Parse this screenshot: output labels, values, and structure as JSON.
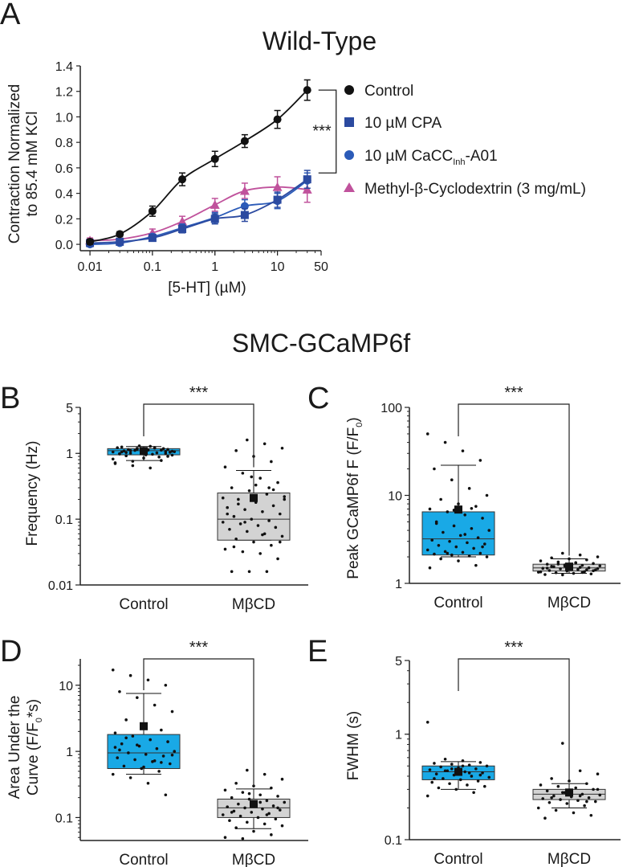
{
  "panel_letters": {
    "a": "A",
    "b": "B",
    "c": "C",
    "d": "D",
    "e": "E"
  },
  "section_title": "SMC-GCaMP6f",
  "significance": "***",
  "chart_data": [
    {
      "id": "A",
      "type": "line",
      "title": "Wild-Type",
      "xlabel": "[5-HT] (µM)",
      "ylabel": [
        "Contraction Normalized",
        "to 85.4 mM KCl"
      ],
      "xscale": "log",
      "xlim": [
        0.007,
        50
      ],
      "ylim": [
        -0.05,
        1.4
      ],
      "xticks": [
        0.01,
        0.1,
        1,
        10,
        50
      ],
      "xtick_labels": [
        "0.01",
        "0.1",
        "1",
        "10",
        "50"
      ],
      "yticks": [
        0.0,
        0.2,
        0.4,
        0.6,
        0.8,
        1.0,
        1.2,
        1.4
      ],
      "ytick_labels": [
        "0.0",
        "0.2",
        "0.4",
        "0.6",
        "0.8",
        "1.0",
        "1.2",
        "1.4"
      ],
      "significance_bracket": {
        "label": "***",
        "between": [
          "Control",
          "10 µM CPA"
        ],
        "at_x": 30
      },
      "series": [
        {
          "name": "Control",
          "marker": "circle",
          "color": "#111111",
          "x": [
            0.01,
            0.03,
            0.1,
            0.3,
            1,
            3,
            10,
            30
          ],
          "y": [
            0.02,
            0.08,
            0.26,
            0.51,
            0.67,
            0.81,
            0.98,
            1.21
          ],
          "err": [
            0.02,
            0.02,
            0.04,
            0.05,
            0.06,
            0.05,
            0.07,
            0.08
          ]
        },
        {
          "name": "10 µM CPA",
          "marker": "square",
          "color": "#2b4aa0",
          "x": [
            0.01,
            0.03,
            0.1,
            0.3,
            1,
            3,
            10,
            30
          ],
          "y": [
            0.01,
            0.02,
            0.05,
            0.12,
            0.2,
            0.23,
            0.35,
            0.51
          ],
          "err": [
            0.01,
            0.01,
            0.02,
            0.03,
            0.04,
            0.05,
            0.06,
            0.07
          ]
        },
        {
          "name": "10 µM CaCC",
          "name_sub": "Inh",
          "name_suffix": "-A01",
          "marker": "circle",
          "color": "#2b5bb8",
          "x": [
            0.01,
            0.03,
            0.1,
            0.3,
            1,
            3,
            10,
            30
          ],
          "y": [
            0.0,
            0.01,
            0.06,
            0.13,
            0.21,
            0.3,
            0.34,
            0.5
          ],
          "err": [
            0.01,
            0.01,
            0.02,
            0.03,
            0.04,
            0.05,
            0.06,
            0.06
          ]
        },
        {
          "name": "Methyl-β-Cyclodextrin (3 mg/mL)",
          "marker": "triangle",
          "color": "#c0529c",
          "x": [
            0.01,
            0.03,
            0.1,
            0.3,
            1,
            3,
            10,
            30
          ],
          "y": [
            0.03,
            0.04,
            0.09,
            0.18,
            0.31,
            0.42,
            0.45,
            0.43
          ],
          "err": [
            0.02,
            0.02,
            0.03,
            0.04,
            0.05,
            0.06,
            0.08,
            0.1
          ]
        }
      ]
    },
    {
      "id": "B",
      "type": "box",
      "ylabel": "Frequency (Hz)",
      "yscale": "log",
      "ylim": [
        0.01,
        5
      ],
      "yticks": [
        0.01,
        0.1,
        1,
        5
      ],
      "ytick_labels": [
        "0.01",
        "0.1",
        "1",
        "5"
      ],
      "categories": [
        "Control",
        "MβCD"
      ],
      "significance": "***",
      "boxes": [
        {
          "name": "Control",
          "color": "#19a9e6",
          "q1": 0.95,
          "median": 1.1,
          "q3": 1.18,
          "whisker_low": 0.78,
          "whisker_high": 1.27,
          "mean": 1.08,
          "points": [
            1.05,
            1.1,
            1.12,
            1.0,
            0.98,
            1.15,
            1.2,
            1.08,
            0.92,
            0.85,
            0.78,
            0.72,
            0.65,
            0.6,
            0.9,
            1.25,
            1.3,
            1.02,
            1.06,
            1.14,
            0.95,
            1.18,
            1.22,
            1.11,
            0.97,
            1.04,
            1.09,
            1.16,
            0.88,
            0.82,
            1.01,
            1.13,
            1.07,
            0.99,
            1.19,
            1.23,
            0.94,
            1.03,
            1.17,
            1.12,
            0.7,
            0.76,
            1.28,
            1.15,
            1.05
          ]
        },
        {
          "name": "MβCD",
          "color": "#d3d3d3",
          "q1": 0.048,
          "median": 0.1,
          "q3": 0.25,
          "whisker_low": 0.048,
          "whisker_high": 0.55,
          "mean": 0.21,
          "points": [
            1.6,
            1.4,
            1.2,
            1.1,
            0.9,
            0.75,
            0.62,
            0.5,
            0.42,
            0.36,
            0.3,
            0.27,
            0.24,
            0.22,
            0.2,
            0.18,
            0.16,
            0.15,
            0.14,
            0.13,
            0.12,
            0.11,
            0.1,
            0.095,
            0.09,
            0.085,
            0.08,
            0.075,
            0.07,
            0.065,
            0.06,
            0.055,
            0.05,
            0.045,
            0.04,
            0.035,
            0.032,
            0.03,
            0.025,
            0.016,
            0.016,
            0.016,
            0.2,
            0.17,
            0.33,
            0.28,
            0.12,
            0.09,
            0.058,
            0.045,
            0.038,
            0.44,
            0.3,
            0.21
          ]
        }
      ]
    },
    {
      "id": "C",
      "type": "box",
      "ylabel": "Peak GCaMP6f F (F/F",
      "ylabel_sub": "0",
      "ylabel_end": ")",
      "yscale": "log",
      "ylim": [
        1,
        100
      ],
      "yticks": [
        1,
        10,
        100
      ],
      "ytick_labels": [
        "1",
        "10",
        "100"
      ],
      "categories": [
        "Control",
        "MβCD"
      ],
      "significance": "***",
      "boxes": [
        {
          "name": "Control",
          "color": "#19a9e6",
          "q1": 2.1,
          "median": 3.2,
          "q3": 6.5,
          "whisker_low": 2.0,
          "whisker_high": 22,
          "mean": 6.9,
          "points": [
            50,
            40,
            32,
            25,
            20,
            15,
            12,
            10,
            9,
            8,
            7.5,
            7,
            6.5,
            6,
            5.5,
            5,
            4.5,
            4.2,
            4,
            3.8,
            3.5,
            3.3,
            3.1,
            3,
            2.9,
            2.8,
            2.7,
            2.6,
            2.5,
            2.4,
            2.3,
            2.25,
            2.2,
            2.15,
            2.1,
            2.05,
            2.0,
            1.9,
            1.8,
            1.6,
            1.5,
            2.2,
            3.6,
            2.6,
            4.8,
            6.8,
            7.1
          ]
        },
        {
          "name": "MβCD",
          "color": "#d3d3d3",
          "q1": 1.38,
          "median": 1.5,
          "q3": 1.65,
          "whisker_low": 1.3,
          "whisker_high": 1.9,
          "mean": 1.55,
          "points": [
            2.2,
            2.1,
            2.0,
            1.95,
            1.9,
            1.85,
            1.8,
            1.75,
            1.7,
            1.68,
            1.65,
            1.62,
            1.6,
            1.58,
            1.55,
            1.53,
            1.5,
            1.48,
            1.46,
            1.44,
            1.42,
            1.4,
            1.38,
            1.36,
            1.34,
            1.32,
            1.3,
            1.28,
            1.26,
            1.25,
            1.52,
            1.47,
            1.56,
            1.61,
            1.43,
            1.35,
            1.66,
            1.72,
            1.39,
            1.49,
            1.57,
            1.33
          ]
        }
      ]
    },
    {
      "id": "D",
      "type": "box",
      "ylabel": [
        "Area Under the",
        "Curve (F/F"
      ],
      "ylabel_sub": "0",
      "ylabel_end": "*s)",
      "yscale": "log",
      "ylim": [
        0.045,
        25
      ],
      "yticks": [
        0.1,
        1,
        10
      ],
      "ytick_labels": [
        "0.1",
        "1",
        "10"
      ],
      "categories": [
        "Control",
        "MβCD"
      ],
      "significance": "***",
      "boxes": [
        {
          "name": "Control",
          "color": "#19a9e6",
          "q1": 0.55,
          "median": 0.95,
          "q3": 1.8,
          "whisker_low": 0.45,
          "whisker_high": 7.5,
          "mean": 2.4,
          "points": [
            17,
            14,
            12,
            10,
            8,
            6.5,
            5,
            4,
            3,
            2.5,
            2.1,
            1.9,
            1.7,
            1.5,
            1.4,
            1.3,
            1.2,
            1.1,
            1.0,
            0.95,
            0.9,
            0.85,
            0.8,
            0.75,
            0.7,
            0.65,
            0.6,
            0.55,
            0.5,
            0.45,
            0.4,
            0.33,
            0.22,
            1.05,
            1.25,
            0.72,
            0.88,
            1.6,
            0.58,
            0.68,
            1.15
          ]
        },
        {
          "name": "MβCD",
          "color": "#d3d3d3",
          "q1": 0.1,
          "median": 0.14,
          "q3": 0.19,
          "whisker_low": 0.068,
          "whisker_high": 0.27,
          "mean": 0.16,
          "points": [
            0.52,
            0.45,
            0.38,
            0.33,
            0.3,
            0.28,
            0.26,
            0.24,
            0.22,
            0.21,
            0.2,
            0.19,
            0.18,
            0.17,
            0.16,
            0.155,
            0.15,
            0.145,
            0.14,
            0.135,
            0.13,
            0.125,
            0.12,
            0.115,
            0.11,
            0.105,
            0.1,
            0.095,
            0.09,
            0.085,
            0.08,
            0.075,
            0.07,
            0.062,
            0.055,
            0.05,
            0.048,
            0.17,
            0.14,
            0.12,
            0.23,
            0.11
          ]
        }
      ]
    },
    {
      "id": "E",
      "type": "box",
      "ylabel": "FWHM (s)",
      "yscale": "log",
      "ylim": [
        0.1,
        5
      ],
      "yticks": [
        0.1,
        1,
        5
      ],
      "ytick_labels": [
        "0.1",
        "1",
        "5"
      ],
      "categories": [
        "Control",
        "MβCD"
      ],
      "significance": "***",
      "boxes": [
        {
          "name": "Control",
          "color": "#19a9e6",
          "q1": 0.37,
          "median": 0.44,
          "q3": 0.5,
          "whisker_low": 0.3,
          "whisker_high": 0.55,
          "mean": 0.44,
          "points": [
            1.3,
            0.58,
            0.56,
            0.54,
            0.53,
            0.52,
            0.51,
            0.5,
            0.49,
            0.48,
            0.47,
            0.46,
            0.45,
            0.44,
            0.43,
            0.42,
            0.41,
            0.4,
            0.39,
            0.38,
            0.37,
            0.36,
            0.35,
            0.34,
            0.33,
            0.32,
            0.31,
            0.3,
            0.28,
            0.26,
            0.45,
            0.5,
            0.41,
            0.38,
            0.47,
            0.43
          ]
        },
        {
          "name": "MβCD",
          "color": "#d3d3d3",
          "q1": 0.24,
          "median": 0.27,
          "q3": 0.3,
          "whisker_low": 0.2,
          "whisker_high": 0.34,
          "mean": 0.28,
          "points": [
            0.82,
            0.45,
            0.42,
            0.38,
            0.36,
            0.34,
            0.33,
            0.32,
            0.31,
            0.3,
            0.29,
            0.28,
            0.27,
            0.265,
            0.26,
            0.255,
            0.25,
            0.245,
            0.24,
            0.235,
            0.23,
            0.225,
            0.22,
            0.21,
            0.2,
            0.19,
            0.18,
            0.17,
            0.16,
            0.28,
            0.26,
            0.3,
            0.25,
            0.27,
            0.23
          ]
        }
      ]
    }
  ]
}
